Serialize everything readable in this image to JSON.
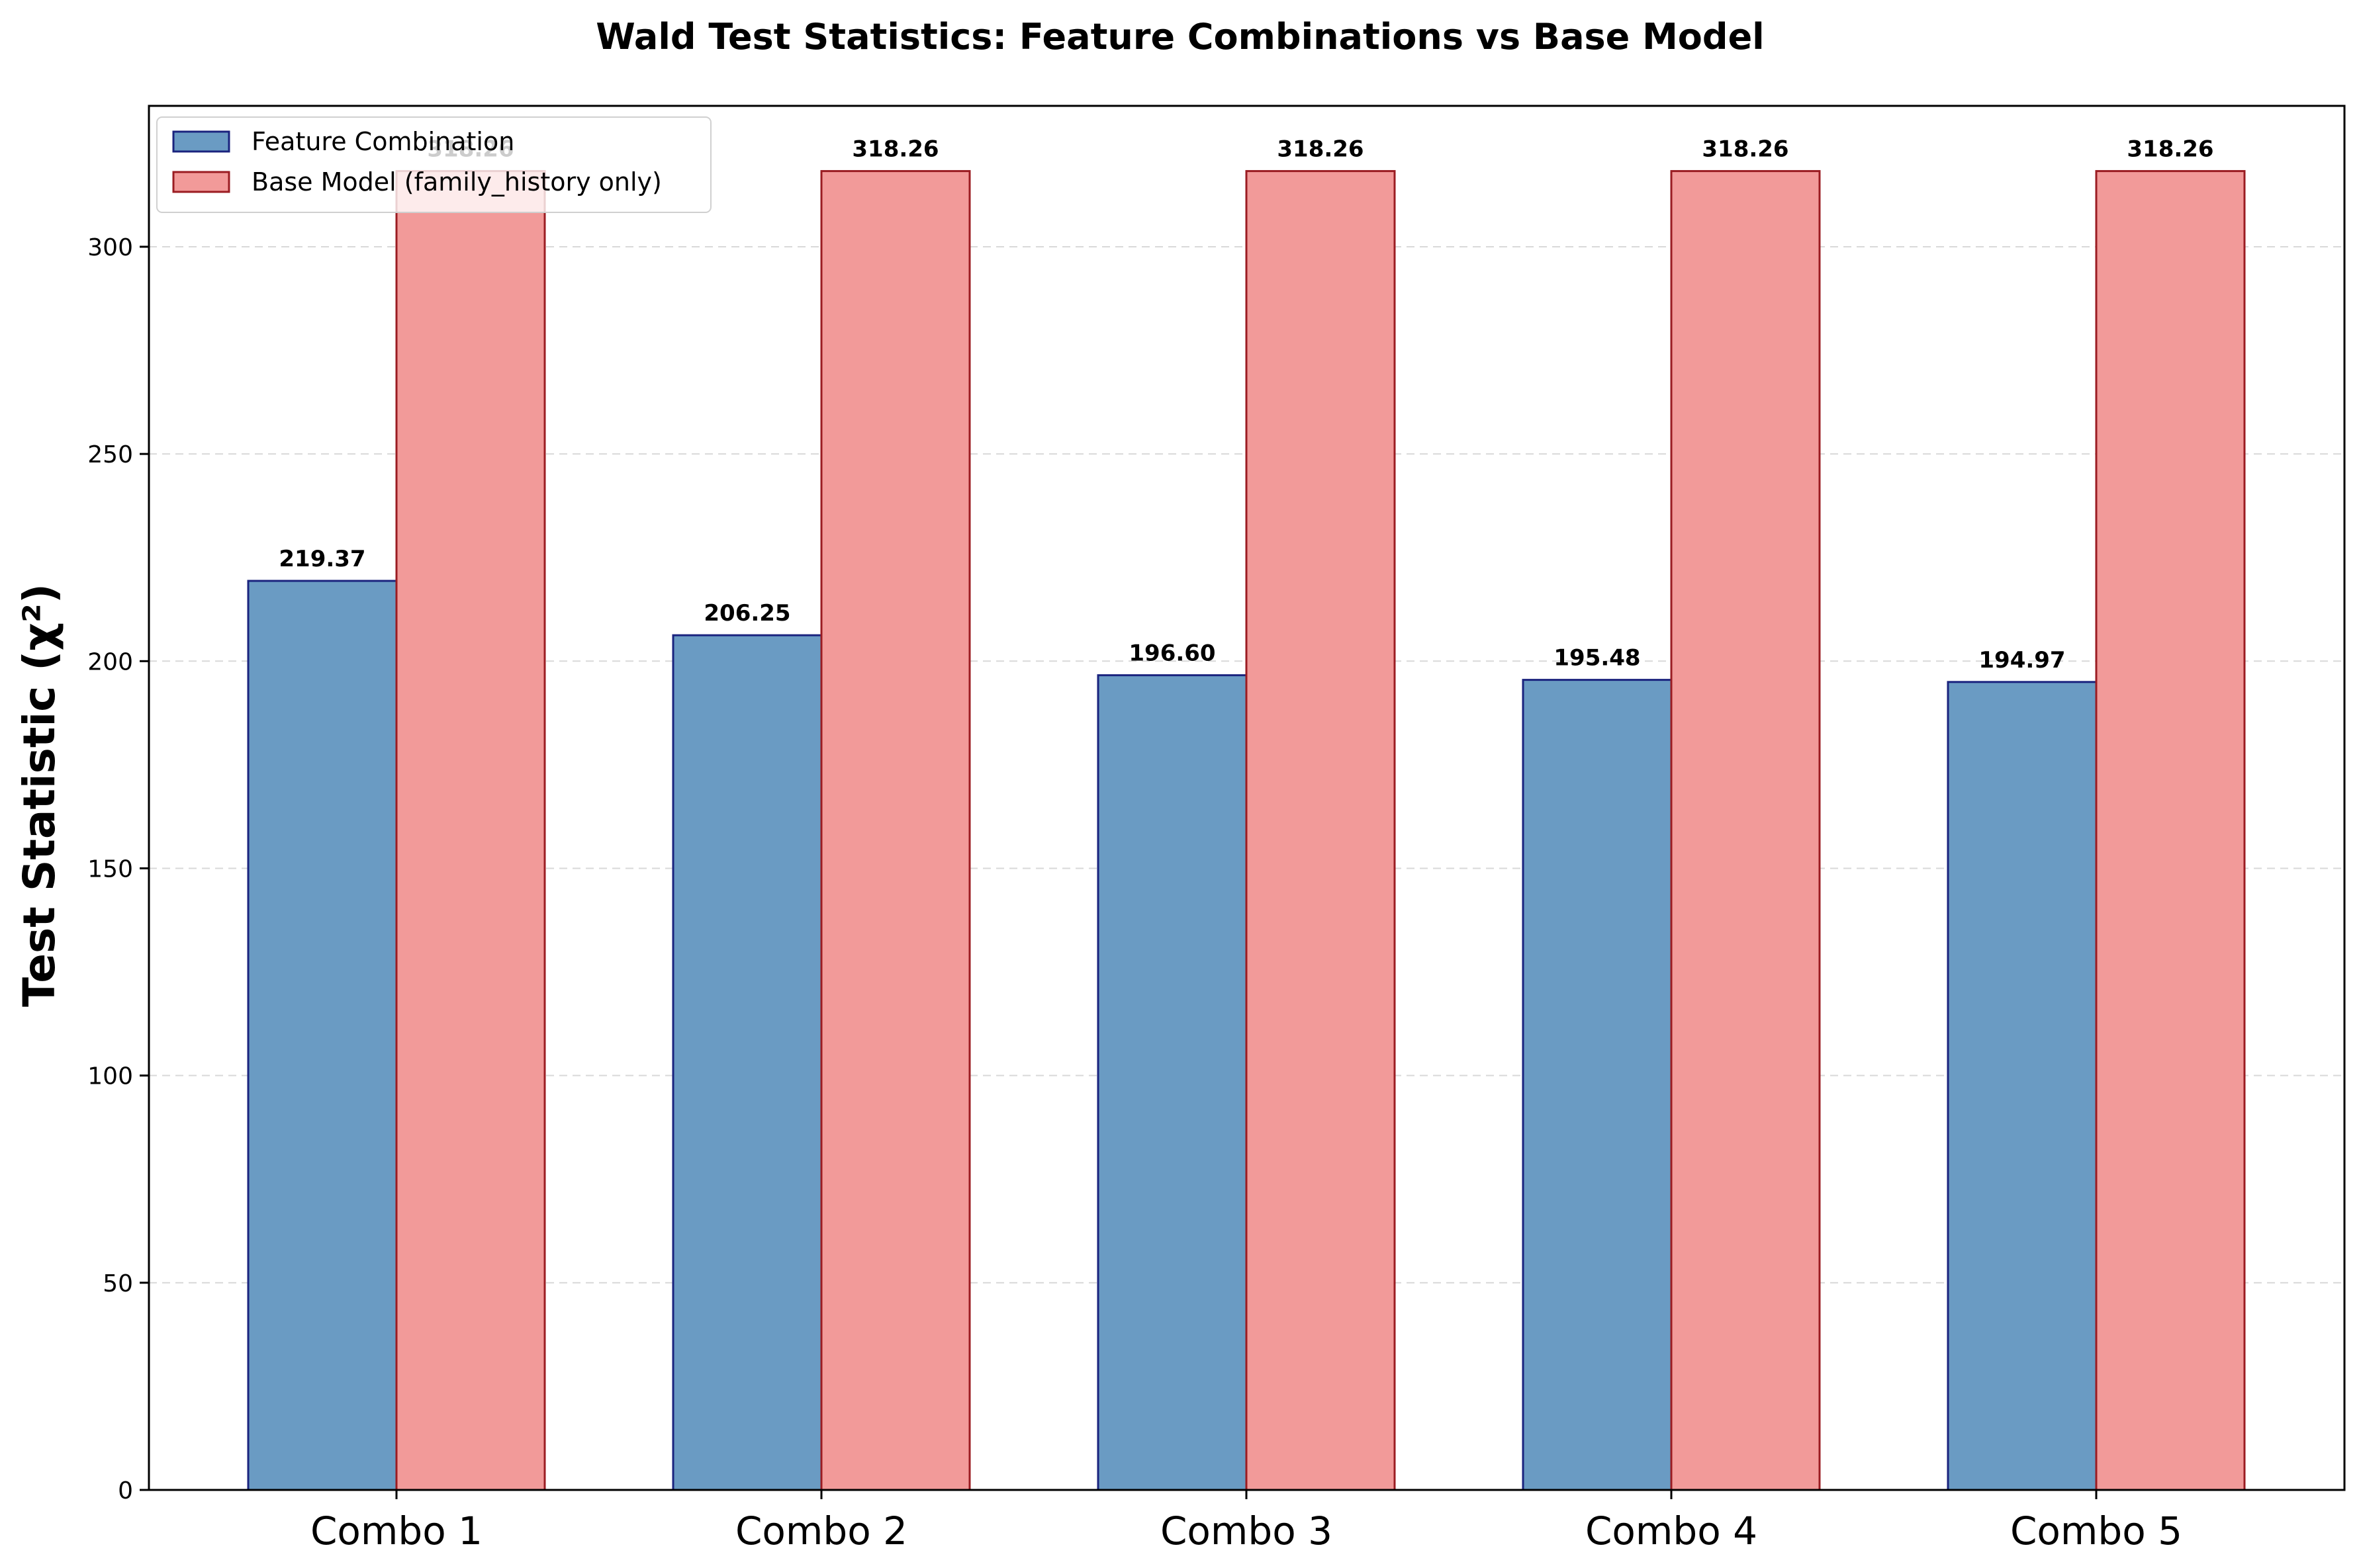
{
  "chart_data": {
    "type": "bar",
    "title": "Wald Test Statistics: Feature Combinations vs Base Model",
    "xlabel": "",
    "ylabel": "Test Statistic (χ²)",
    "categories": [
      "Combo 1",
      "Combo 2",
      "Combo 3",
      "Combo 4",
      "Combo 5"
    ],
    "series": [
      {
        "name": "Feature Combination",
        "values": [
          219.37,
          206.25,
          196.6,
          195.48,
          194.97
        ],
        "labels": [
          "219.37",
          "206.25",
          "196.60",
          "195.48",
          "194.97"
        ],
        "color": "#6a9bc3",
        "edge_color": "#1a237e"
      },
      {
        "name": "Base Model (family_history only)",
        "values": [
          318.26,
          318.26,
          318.26,
          318.26,
          318.26
        ],
        "labels": [
          "318.26",
          "318.26",
          "318.26",
          "318.26",
          "318.26"
        ],
        "color": "#f29a99",
        "edge_color": "#9b1c22"
      }
    ],
    "ylim": [
      0,
      334
    ],
    "yticks": [
      0,
      50,
      100,
      150,
      200,
      250,
      300
    ],
    "ytick_labels": [
      "0",
      "50",
      "100",
      "150",
      "200",
      "250",
      "300"
    ],
    "grid": "y dashed",
    "legend": "top-left"
  }
}
